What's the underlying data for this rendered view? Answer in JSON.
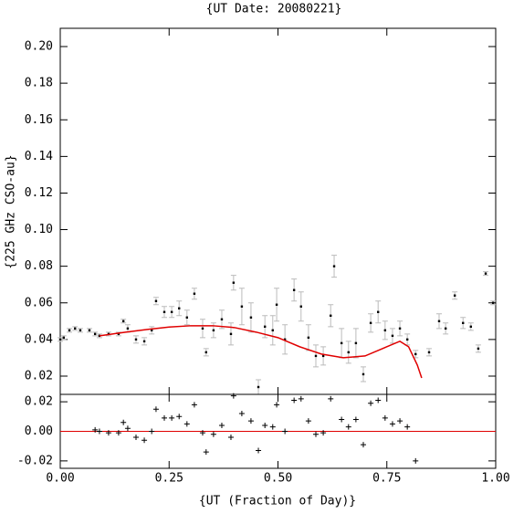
{
  "chart_data": [
    {
      "type": "scatter",
      "title": "{UT Date: 20080221}",
      "ylabel": "{225 GHz CSO-au}",
      "x": [
        0.0,
        0.008,
        0.021,
        0.034,
        0.046,
        0.067,
        0.08,
        0.09,
        0.111,
        0.134,
        0.145,
        0.155,
        0.174,
        0.193,
        0.21,
        0.22,
        0.239,
        0.256,
        0.273,
        0.291,
        0.308,
        0.327,
        0.335,
        0.352,
        0.371,
        0.392,
        0.398,
        0.417,
        0.438,
        0.455,
        0.47,
        0.488,
        0.497,
        0.516,
        0.537,
        0.553,
        0.57,
        0.587,
        0.604,
        0.621,
        0.629,
        0.646,
        0.662,
        0.679,
        0.696,
        0.713,
        0.73,
        0.746,
        0.763,
        0.78,
        0.797,
        0.816,
        0.847,
        0.87,
        0.885,
        0.906,
        0.925,
        0.943,
        0.96,
        0.977,
        0.994
      ],
      "values": [
        0.04,
        0.041,
        0.045,
        0.046,
        0.045,
        0.045,
        0.043,
        0.042,
        0.043,
        0.043,
        0.05,
        0.046,
        0.04,
        0.039,
        0.045,
        0.061,
        0.055,
        0.055,
        0.057,
        0.052,
        0.065,
        0.046,
        0.033,
        0.045,
        0.051,
        0.043,
        0.071,
        0.058,
        0.052,
        0.014,
        0.047,
        0.045,
        0.059,
        0.04,
        0.067,
        0.058,
        0.041,
        0.031,
        0.031,
        0.053,
        0.08,
        0.038,
        0.033,
        0.038,
        0.021,
        0.049,
        0.055,
        0.045,
        0.042,
        0.046,
        0.04,
        0.032,
        0.033,
        0.05,
        0.046,
        0.064,
        0.049,
        0.047,
        0.035,
        0.076,
        0.06
      ],
      "errors": [
        0.001,
        0.001,
        0.001,
        0.001,
        0.001,
        0.001,
        0.001,
        0.001,
        0.001,
        0.001,
        0.001,
        0.002,
        0.002,
        0.002,
        0.002,
        0.002,
        0.003,
        0.003,
        0.004,
        0.004,
        0.003,
        0.005,
        0.002,
        0.004,
        0.005,
        0.006,
        0.004,
        0.01,
        0.008,
        0.004,
        0.006,
        0.008,
        0.009,
        0.008,
        0.006,
        0.008,
        0.007,
        0.006,
        0.005,
        0.006,
        0.006,
        0.008,
        0.006,
        0.008,
        0.004,
        0.005,
        0.006,
        0.005,
        0.004,
        0.004,
        0.003,
        0.002,
        0.002,
        0.004,
        0.003,
        0.002,
        0.003,
        0.002,
        0.002,
        0.001,
        0.001
      ],
      "fit_x": [
        0.09,
        0.12,
        0.15,
        0.2,
        0.25,
        0.3,
        0.35,
        0.4,
        0.45,
        0.5,
        0.55,
        0.6,
        0.65,
        0.7,
        0.75,
        0.78,
        0.8,
        0.82,
        0.83
      ],
      "fit_values": [
        0.042,
        0.043,
        0.044,
        0.0455,
        0.0468,
        0.0475,
        0.0475,
        0.0465,
        0.044,
        0.041,
        0.036,
        0.032,
        0.03,
        0.031,
        0.036,
        0.039,
        0.036,
        0.026,
        0.019
      ],
      "point_color": "#000000",
      "error_color": "#bbbbbb",
      "fit_color": "#e00000",
      "xlim": [
        0,
        1
      ],
      "ylim": [
        0.01,
        0.21
      ],
      "xticks": [
        {
          "value": 0,
          "label": "0.00"
        },
        {
          "value": 0.25,
          "label": "0.25"
        },
        {
          "value": 0.5,
          "label": "0.50"
        },
        {
          "value": 0.75,
          "label": "0.75"
        },
        {
          "value": 1,
          "label": "1.00"
        }
      ],
      "yticks": [
        {
          "value": 0.02,
          "label": "0.02"
        },
        {
          "value": 0.04,
          "label": "0.04"
        },
        {
          "value": 0.06,
          "label": "0.06"
        },
        {
          "value": 0.08,
          "label": "0.08"
        },
        {
          "value": 0.1,
          "label": "0.10"
        },
        {
          "value": 0.12,
          "label": "0.12"
        },
        {
          "value": 0.14,
          "label": "0.14"
        },
        {
          "value": 0.16,
          "label": "0.16"
        },
        {
          "value": 0.18,
          "label": "0.18"
        },
        {
          "value": 0.2,
          "label": "0.20"
        }
      ]
    },
    {
      "type": "residual",
      "xlabel": "{UT (Fraction of Day)}",
      "x": [
        0.08,
        0.09,
        0.111,
        0.134,
        0.145,
        0.155,
        0.174,
        0.193,
        0.21,
        0.22,
        0.239,
        0.256,
        0.273,
        0.291,
        0.308,
        0.327,
        0.335,
        0.352,
        0.371,
        0.392,
        0.398,
        0.417,
        0.438,
        0.455,
        0.47,
        0.488,
        0.497,
        0.516,
        0.537,
        0.553,
        0.57,
        0.587,
        0.604,
        0.621,
        0.646,
        0.662,
        0.679,
        0.696,
        0.713,
        0.73,
        0.746,
        0.763,
        0.78,
        0.797,
        0.816
      ],
      "values": [
        0.001,
        0.0,
        -0.001,
        -0.001,
        0.006,
        0.002,
        -0.004,
        -0.006,
        0.0,
        0.015,
        0.009,
        0.009,
        0.01,
        0.005,
        0.018,
        -0.001,
        -0.014,
        -0.002,
        0.004,
        -0.004,
        0.024,
        0.012,
        0.007,
        -0.013,
        0.004,
        0.003,
        0.018,
        0.0,
        0.021,
        0.022,
        0.007,
        -0.002,
        -0.001,
        0.022,
        0.008,
        0.003,
        0.008,
        -0.009,
        0.019,
        0.021,
        0.009,
        0.005,
        0.007,
        0.003,
        -0.02
      ],
      "reference_line": 0,
      "point_color": "#000000",
      "line_color": "#e00000",
      "xlim": [
        0,
        1
      ],
      "ylim": [
        -0.025,
        0.025
      ],
      "xticks": [
        {
          "value": 0,
          "label": "0.00"
        },
        {
          "value": 0.25,
          "label": "0.25"
        },
        {
          "value": 0.5,
          "label": "0.50"
        },
        {
          "value": 0.75,
          "label": "0.75"
        },
        {
          "value": 1,
          "label": "1.00"
        }
      ],
      "yticks": [
        {
          "value": -0.02,
          "label": "-0.02"
        },
        {
          "value": 0,
          "label": "0.00"
        },
        {
          "value": 0.02,
          "label": "0.02"
        }
      ]
    }
  ]
}
